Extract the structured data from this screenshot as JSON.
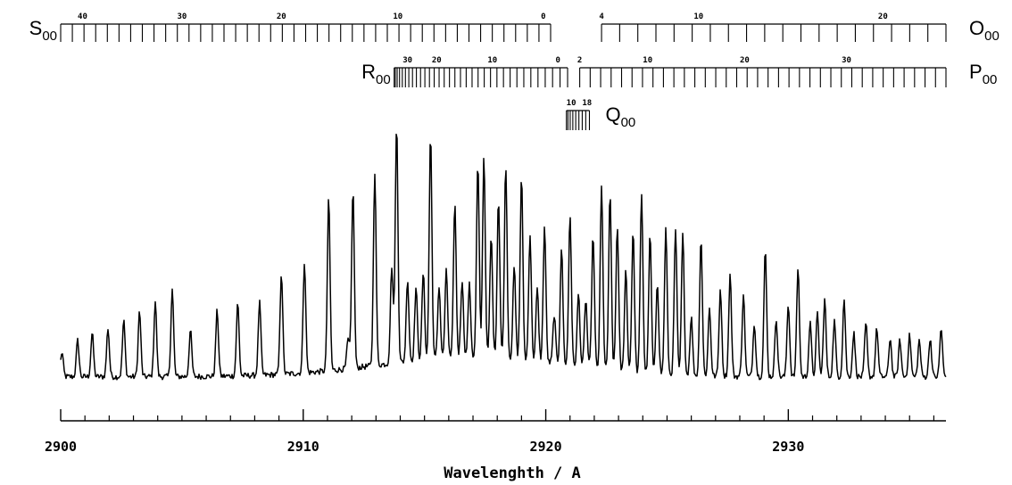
{
  "chart_data": {
    "type": "line",
    "title": "",
    "xlabel": "Wavelenghth / A",
    "ylabel": "",
    "xlim": [
      2900,
      2936.5
    ],
    "x_ticks": [
      2900,
      2910,
      2920,
      2930
    ],
    "x_tick_labels": [
      "2900",
      "2910",
      "2920",
      "2930"
    ],
    "minor_tick_step": 1,
    "grid": false,
    "legend": "none",
    "series": [
      {
        "baseline": 0.02,
        "noise": 0.012,
        "x": [
          2900.05,
          2900.7,
          2901.3,
          2901.95,
          2902.6,
          2903.25,
          2903.9,
          2904.6,
          2905.35,
          2906.45,
          2907.3,
          2908.2,
          2909.1,
          2910.05,
          2911.05,
          2911.85,
          2912.05,
          2912.95,
          2913.65,
          2913.85,
          2914.3,
          2914.65,
          2914.95,
          2915.25,
          2915.6,
          2915.9,
          2916.25,
          2916.55,
          2916.85,
          2917.2,
          2917.45,
          2917.75,
          2918.05,
          2918.35,
          2918.7,
          2919.0,
          2919.35,
          2919.65,
          2919.95,
          2920.35,
          2920.65,
          2921.0,
          2921.35,
          2921.65,
          2921.95,
          2922.3,
          2922.65,
          2922.95,
          2923.3,
          2923.6,
          2923.95,
          2924.3,
          2924.6,
          2924.95,
          2925.35,
          2925.65,
          2926.0,
          2926.4,
          2926.75,
          2927.2,
          2927.6,
          2928.15,
          2928.6,
          2929.05,
          2929.5,
          2930.0,
          2930.4,
          2930.9,
          2931.2,
          2931.5,
          2931.9,
          2932.3,
          2932.7,
          2933.2,
          2933.65,
          2934.2,
          2934.6,
          2935.0,
          2935.4,
          2935.85,
          2936.3
        ],
        "y": [
          0.1,
          0.15,
          0.18,
          0.2,
          0.23,
          0.27,
          0.31,
          0.36,
          0.19,
          0.27,
          0.3,
          0.3,
          0.42,
          0.46,
          0.71,
          0.12,
          0.74,
          0.8,
          0.4,
          1.0,
          0.34,
          0.3,
          0.36,
          0.93,
          0.3,
          0.36,
          0.64,
          0.32,
          0.3,
          0.8,
          0.83,
          0.5,
          0.66,
          0.8,
          0.38,
          0.76,
          0.52,
          0.3,
          0.56,
          0.2,
          0.48,
          0.62,
          0.3,
          0.28,
          0.55,
          0.75,
          0.72,
          0.6,
          0.42,
          0.58,
          0.74,
          0.57,
          0.38,
          0.6,
          0.6,
          0.58,
          0.24,
          0.57,
          0.28,
          0.36,
          0.42,
          0.34,
          0.22,
          0.52,
          0.24,
          0.3,
          0.45,
          0.22,
          0.26,
          0.32,
          0.23,
          0.32,
          0.18,
          0.22,
          0.2,
          0.16,
          0.15,
          0.17,
          0.15,
          0.16,
          0.2
        ]
      }
    ],
    "branches": [
      {
        "name": "S",
        "sub": "00",
        "side": "left",
        "row": 0,
        "x_start": 2900.0,
        "x_end": 2920.2,
        "n_ticks": 43,
        "labels": [
          {
            "n": "40",
            "x": 2900.9
          },
          {
            "n": "30",
            "x": 2905.0
          },
          {
            "n": "20",
            "x": 2909.1
          },
          {
            "n": "10",
            "x": 2913.9
          },
          {
            "n": "0",
            "x": 2919.9
          }
        ]
      },
      {
        "name": "O",
        "sub": "00",
        "side": "right",
        "row": 0,
        "x_start": 2922.3,
        "x_end": 2936.5,
        "n_ticks": 20,
        "labels": [
          {
            "n": "4",
            "x": 2922.3
          },
          {
            "n": "10",
            "x": 2926.3
          },
          {
            "n": "20",
            "x": 2933.9
          }
        ]
      },
      {
        "name": "R",
        "sub": "00",
        "side": "left",
        "row": 1,
        "x_start": 2913.75,
        "x_end": 2920.9,
        "n_ticks": 34,
        "labels": [
          {
            "n": "30",
            "x": 2914.3
          },
          {
            "n": "20",
            "x": 2915.5
          },
          {
            "n": "10",
            "x": 2917.8
          },
          {
            "n": "0",
            "x": 2920.5
          }
        ]
      },
      {
        "name": "P",
        "sub": "00",
        "side": "right",
        "row": 1,
        "x_start": 2921.4,
        "x_end": 2936.5,
        "n_ticks": 36,
        "labels": [
          {
            "n": "2",
            "x": 2921.4
          },
          {
            "n": "10",
            "x": 2924.2
          },
          {
            "n": "20",
            "x": 2928.2
          },
          {
            "n": "30",
            "x": 2932.4
          }
        ]
      },
      {
        "name": "Q",
        "sub": "00",
        "side": "right",
        "row": 2,
        "x_start": 2920.85,
        "x_end": 2921.8,
        "n_ticks": 9,
        "labels": [
          {
            "n": "10",
            "x": 2921.05
          },
          {
            "n": "18",
            "x": 2921.7
          }
        ]
      }
    ]
  }
}
